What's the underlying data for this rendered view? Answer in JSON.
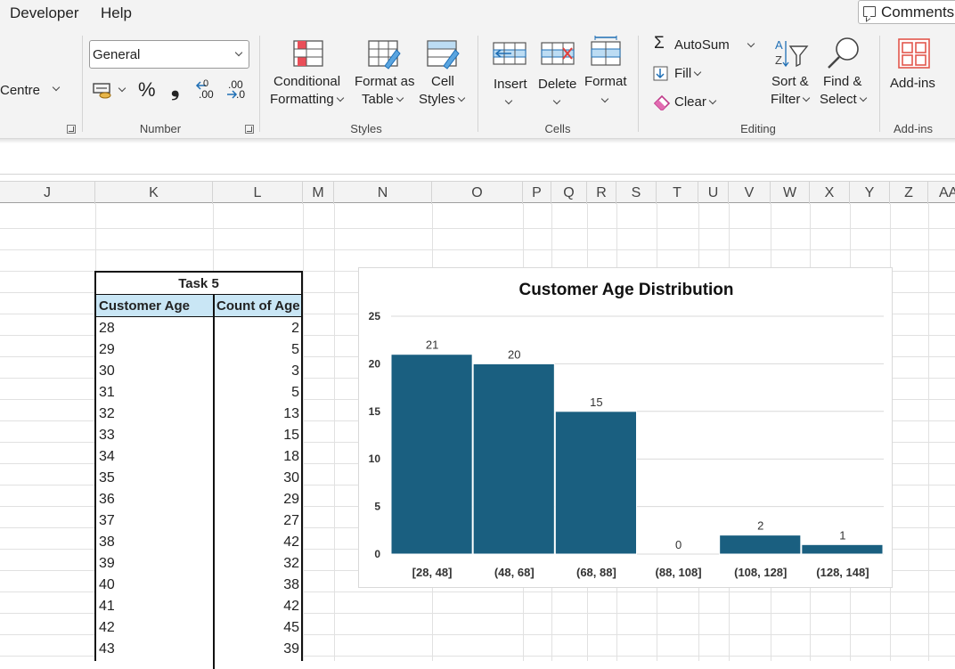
{
  "menubar": {
    "items": [
      "Developer",
      "Help"
    ],
    "comments_label": "Comments"
  },
  "ribbon": {
    "alignment": {
      "value": "Centre"
    },
    "number": {
      "format_value": "General",
      "label": "Number",
      "percent_symbol": "%",
      "comma_symbol": "❟",
      "increase_decimal": ".00",
      "decrease_decimal": ".0"
    },
    "styles": {
      "label": "Styles",
      "conditional_formatting": [
        "Conditional",
        "Formatting"
      ],
      "format_as_table": [
        "Format as",
        "Table"
      ],
      "cell_styles": [
        "Cell",
        "Styles"
      ]
    },
    "cells": {
      "label": "Cells",
      "insert": "Insert",
      "delete": "Delete",
      "format": "Format"
    },
    "editing": {
      "label": "Editing",
      "autosum": "AutoSum",
      "fill": "Fill",
      "clear": "Clear",
      "sort_filter": [
        "Sort &",
        "Filter"
      ],
      "find_select": [
        "Find &",
        "Select"
      ]
    },
    "addins": {
      "label": "Add-ins",
      "button": "Add-ins"
    }
  },
  "columns": [
    "J",
    "K",
    "L",
    "M",
    "N",
    "O",
    "P",
    "Q",
    "R",
    "S",
    "T",
    "U",
    "V",
    "W",
    "X",
    "Y",
    "Z",
    "AA"
  ],
  "table": {
    "title": "Task 5",
    "headers": [
      "Customer Age",
      "Count of Age"
    ],
    "rows": [
      [
        "28",
        "2"
      ],
      [
        "29",
        "5"
      ],
      [
        "30",
        "3"
      ],
      [
        "31",
        "5"
      ],
      [
        "32",
        "13"
      ],
      [
        "33",
        "15"
      ],
      [
        "34",
        "18"
      ],
      [
        "35",
        "30"
      ],
      [
        "36",
        "29"
      ],
      [
        "37",
        "27"
      ],
      [
        "38",
        "42"
      ],
      [
        "39",
        "32"
      ],
      [
        "40",
        "38"
      ],
      [
        "41",
        "42"
      ],
      [
        "42",
        "45"
      ],
      [
        "43",
        "39"
      ]
    ]
  },
  "chart_data": {
    "type": "bar",
    "title": "Customer Age Distribution",
    "categories": [
      "[28, 48]",
      "(48, 68]",
      "(68, 88]",
      "(88, 108]",
      "(108, 128]",
      "(128, 148]"
    ],
    "values": [
      21,
      20,
      15,
      0,
      2,
      1
    ],
    "ylim": [
      0,
      25
    ],
    "yticks": [
      0,
      5,
      10,
      15,
      20,
      25
    ],
    "grid": true,
    "bar_color": "#1a5f80"
  }
}
